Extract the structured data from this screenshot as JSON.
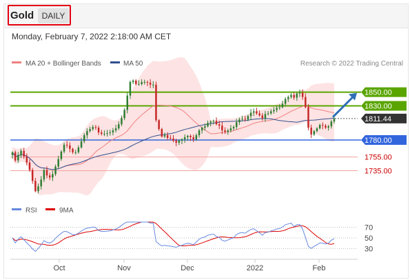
{
  "header": {
    "instrument": "Gold",
    "period_label": "DAILY",
    "datetime": "Monday, February 7, 2022 2:18:00 AM CET"
  },
  "colors": {
    "bull": "#2e7d32",
    "bear": "#c62828",
    "ma20": "#f08080",
    "ma50": "#2f4f8f",
    "bollinger_fill": "#fde3e3",
    "resistance": "#5aa500",
    "support": "#3366dd",
    "target_line": "#f3a0a0",
    "target_text": "#cc0000",
    "current_price_bg": "#333333",
    "rsi": "#6688dd",
    "rsi_ma": "#dd0000",
    "arrow": "#2f6fb7"
  },
  "chart_data": [
    {
      "type": "candlestick",
      "name": "price",
      "legend": [
        {
          "label": "MA 20 + Bollinger Bands",
          "color": "#f08080"
        },
        {
          "label": "MA 50",
          "color": "#2f4f8f"
        }
      ],
      "legend_placement": "top-left",
      "credit": "Research © 2022 Trading Central",
      "x_ticks": [
        "Oct",
        "Nov",
        "Dec",
        "2022",
        "Feb"
      ],
      "ylim": [
        1690,
        1880
      ],
      "grid": false,
      "start": {
        "open": 1758,
        "close": 1762
      },
      "closes": [
        1762,
        1750,
        1758,
        1764,
        1756,
        1747,
        1736,
        1720,
        1705,
        1712,
        1722,
        1736,
        1728,
        1725,
        1730,
        1741,
        1752,
        1763,
        1773,
        1772,
        1767,
        1762,
        1762,
        1769,
        1778,
        1787,
        1793,
        1796,
        1799,
        1798,
        1791,
        1789,
        1789,
        1790,
        1791,
        1794,
        1797,
        1803,
        1812,
        1824,
        1845,
        1865,
        1867,
        1862,
        1862,
        1865,
        1865,
        1864,
        1861,
        1861,
        1809,
        1796,
        1785,
        1787,
        1783,
        1782,
        1779,
        1776,
        1779,
        1781,
        1784,
        1786,
        1784,
        1781,
        1787,
        1794,
        1798,
        1800,
        1805,
        1807,
        1808,
        1803,
        1801,
        1794,
        1792,
        1794,
        1797,
        1799,
        1806,
        1810,
        1811,
        1810,
        1815,
        1820,
        1822,
        1819,
        1816,
        1812,
        1818,
        1819,
        1822,
        1824,
        1827,
        1828,
        1833,
        1840,
        1843,
        1846,
        1842,
        1848,
        1849,
        1843,
        1828,
        1798,
        1788,
        1793,
        1797,
        1802,
        1801,
        1798,
        1800,
        1807,
        1811
      ],
      "candles_shown": 113,
      "horizontal_lines": [
        {
          "value": 1850.0,
          "label": "1850.00",
          "kind": "resistance"
        },
        {
          "value": 1830.0,
          "label": "1830.00",
          "kind": "resistance"
        },
        {
          "value": 1811.44,
          "label": "1811.44",
          "kind": "current"
        },
        {
          "value": 1780.0,
          "label": "1780.00",
          "kind": "support"
        },
        {
          "value": 1755.0,
          "label": "1755.00",
          "kind": "target"
        },
        {
          "value": 1735.0,
          "label": "1735.00",
          "kind": "target"
        }
      ],
      "forecast_arrow": {
        "from_value": 1811.44,
        "to_value": 1850.0,
        "direction": "up"
      }
    },
    {
      "type": "line",
      "name": "rsi",
      "legend": [
        {
          "label": "RSI",
          "color": "#6688dd"
        },
        {
          "label": "9MA",
          "color": "#dd0000"
        }
      ],
      "levels": [
        {
          "value": 70,
          "label": "70"
        },
        {
          "value": 50,
          "label": "50"
        },
        {
          "value": 30,
          "label": "30"
        }
      ],
      "ylim": [
        20,
        80
      ]
    }
  ]
}
